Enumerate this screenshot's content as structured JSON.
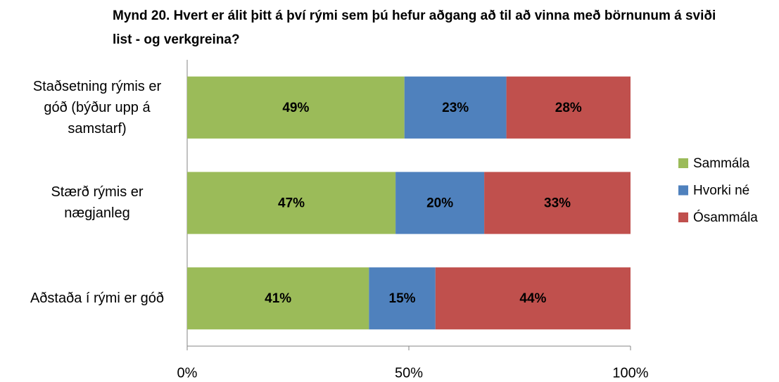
{
  "chart_data": {
    "type": "stacked-bar-horizontal",
    "title": "Mynd 20. Hvert er álit þitt á því rými sem þú hefur aðgang að til að vinna með börnunum á sviði list - og verkgreina?",
    "categories": [
      "Staðsetning rýmis er góð (býður upp á samstarf)",
      "Stærð rýmis er nægjanleg",
      "Aðstaða í rými er góð"
    ],
    "series": [
      {
        "name": "Sammála",
        "color": "#9bbb59",
        "values": [
          49,
          47,
          41
        ],
        "value_labels": [
          "49%",
          "47%",
          "41%"
        ]
      },
      {
        "name": "Hvorki né",
        "color": "#4f81bd",
        "values": [
          23,
          20,
          15
        ],
        "value_labels": [
          "23%",
          "20%",
          "15%"
        ]
      },
      {
        "name": "Ósammála",
        "color": "#c0504d",
        "values": [
          28,
          33,
          44
        ],
        "value_labels": [
          "28%",
          "33%",
          "44%"
        ]
      }
    ],
    "xlim": [
      0,
      100
    ],
    "xticks": [
      {
        "value": 0,
        "label": "0%"
      },
      {
        "value": 50,
        "label": "50%"
      },
      {
        "value": 100,
        "label": "100%"
      }
    ],
    "legend": "right"
  }
}
